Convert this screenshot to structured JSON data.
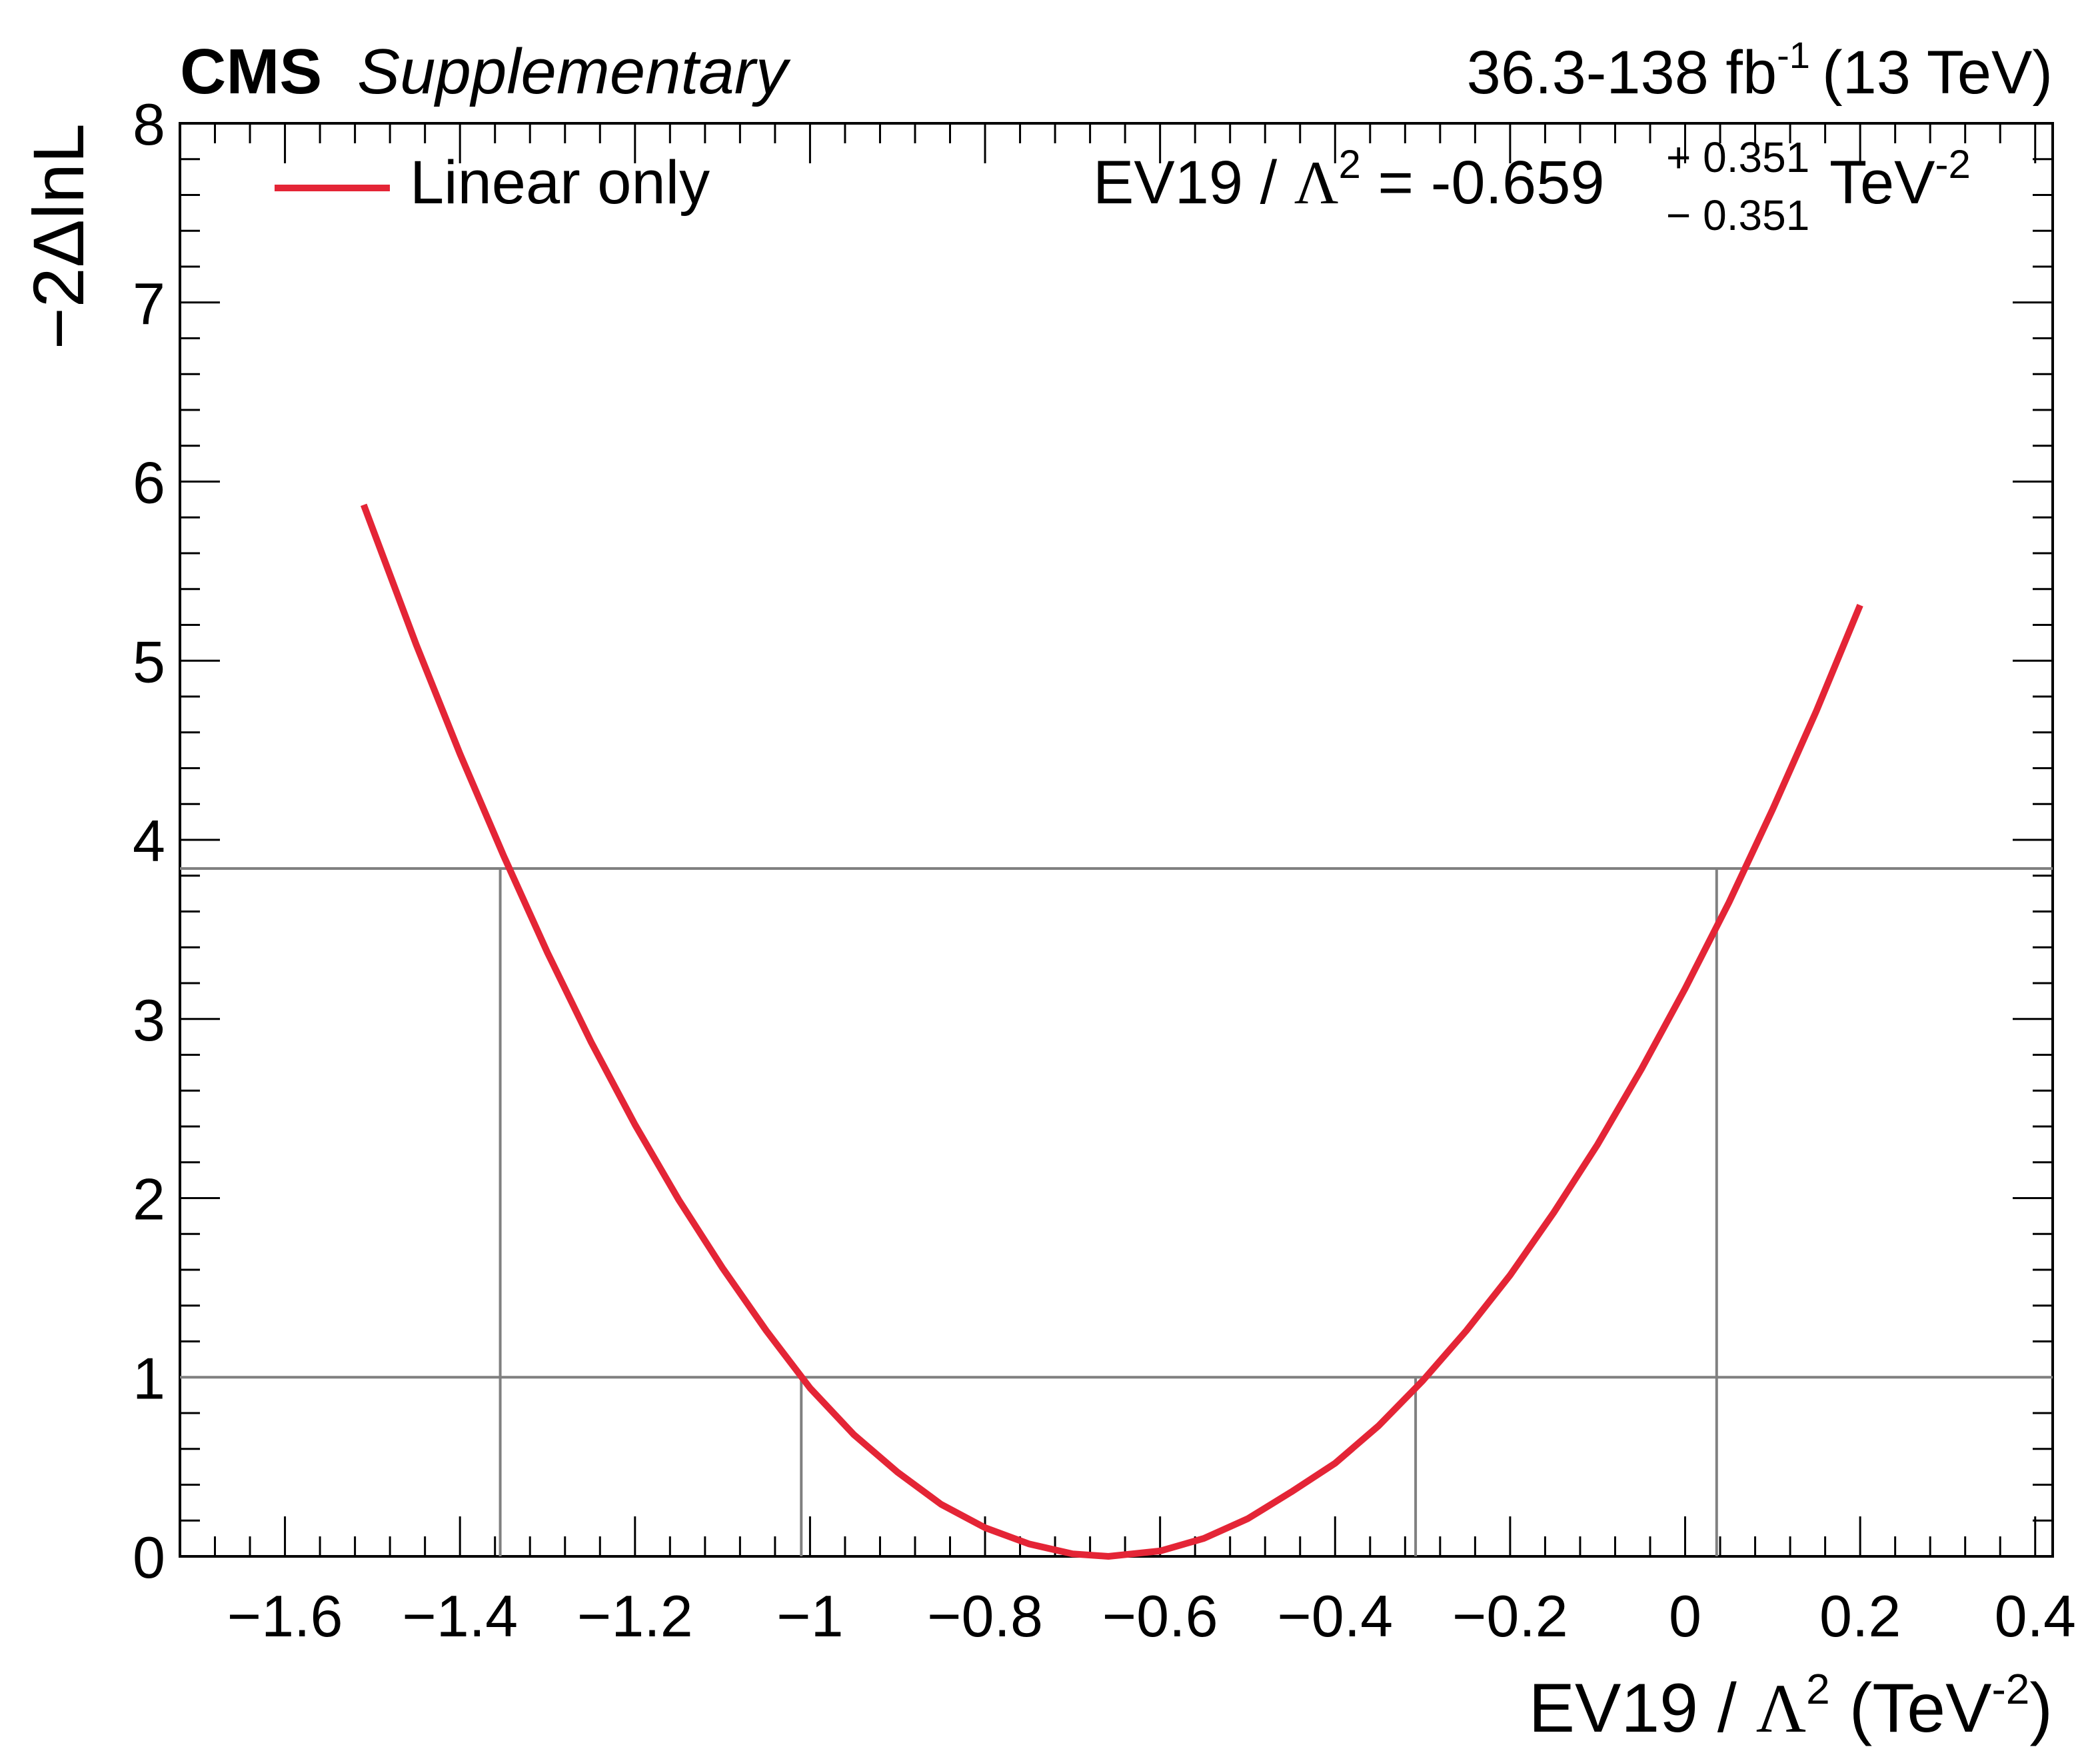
{
  "header": {
    "experiment": "CMS",
    "status": "Supplementary",
    "lumi_value": "36.3-138 fb",
    "lumi_exponent": "-1",
    "energy": "(13 TeV)"
  },
  "legend": {
    "entry": "Linear only"
  },
  "result": {
    "param": "EV19 / ",
    "lambda": "Λ",
    "lambda_exp": "2",
    "equals": " = -0.659",
    "err_up": "+ 0.351",
    "err_down": "− 0.351",
    "unit": "TeV",
    "unit_exp": "-2"
  },
  "colors": {
    "curve": "#e42536",
    "reference_lines": "#808080",
    "axes": "#000000"
  },
  "chart_data": {
    "type": "line",
    "xlabel": {
      "pre": "EV19 / ",
      "lambda": "Λ",
      "lambda_exp": "2",
      "unit_open": " (TeV",
      "unit_exp": "-2",
      "unit_close": ")"
    },
    "ylabel": "−2ΔlnL",
    "xlim": [
      -1.72,
      0.42
    ],
    "ylim": [
      0,
      8
    ],
    "x_ticks": [
      {
        "v": -1.6,
        "label": "−1.6"
      },
      {
        "v": -1.4,
        "label": "−1.4"
      },
      {
        "v": -1.2,
        "label": "−1.2"
      },
      {
        "v": -1.0,
        "label": "−1"
      },
      {
        "v": -0.8,
        "label": "−0.8"
      },
      {
        "v": -0.6,
        "label": "−0.6"
      },
      {
        "v": -0.4,
        "label": "−0.4"
      },
      {
        "v": -0.2,
        "label": "−0.2"
      },
      {
        "v": 0.0,
        "label": "0"
      },
      {
        "v": 0.2,
        "label": "0.2"
      },
      {
        "v": 0.4,
        "label": "0.4"
      }
    ],
    "y_ticks": [
      {
        "v": 0,
        "label": "0"
      },
      {
        "v": 1,
        "label": "1"
      },
      {
        "v": 2,
        "label": "2"
      },
      {
        "v": 3,
        "label": "3"
      },
      {
        "v": 4,
        "label": "4"
      },
      {
        "v": 5,
        "label": "5"
      },
      {
        "v": 6,
        "label": "6"
      },
      {
        "v": 7,
        "label": "7"
      },
      {
        "v": 8,
        "label": "8"
      }
    ],
    "series": [
      {
        "name": "Linear only",
        "x": [
          -1.51,
          -1.45,
          -1.4,
          -1.35,
          -1.3,
          -1.25,
          -1.2,
          -1.15,
          -1.1,
          -1.05,
          -1.0,
          -0.95,
          -0.9,
          -0.85,
          -0.8,
          -0.75,
          -0.7,
          -0.659,
          -0.6,
          -0.55,
          -0.5,
          -0.45,
          -0.4,
          -0.35,
          -0.3,
          -0.25,
          -0.2,
          -0.15,
          -0.1,
          -0.05,
          0.0,
          0.05,
          0.1,
          0.15,
          0.2
        ],
        "y": [
          5.87,
          5.09,
          4.48,
          3.91,
          3.37,
          2.87,
          2.41,
          1.99,
          1.61,
          1.26,
          0.94,
          0.68,
          0.47,
          0.29,
          0.16,
          0.07,
          0.014,
          0.0,
          0.03,
          0.1,
          0.21,
          0.36,
          0.52,
          0.73,
          0.98,
          1.26,
          1.57,
          1.92,
          2.3,
          2.72,
          3.17,
          3.65,
          4.17,
          4.72,
          5.31
        ]
      }
    ],
    "reference_lines": {
      "horizontal": [
        1.0,
        3.84
      ],
      "vertical": [
        {
          "x": -1.354,
          "y_top": 3.84
        },
        {
          "x": -1.01,
          "y_top": 1.0
        },
        {
          "x": -0.308,
          "y_top": 1.0
        },
        {
          "x": 0.036,
          "y_top": 3.84
        }
      ]
    },
    "grid": false,
    "legend_position": "top-left"
  }
}
